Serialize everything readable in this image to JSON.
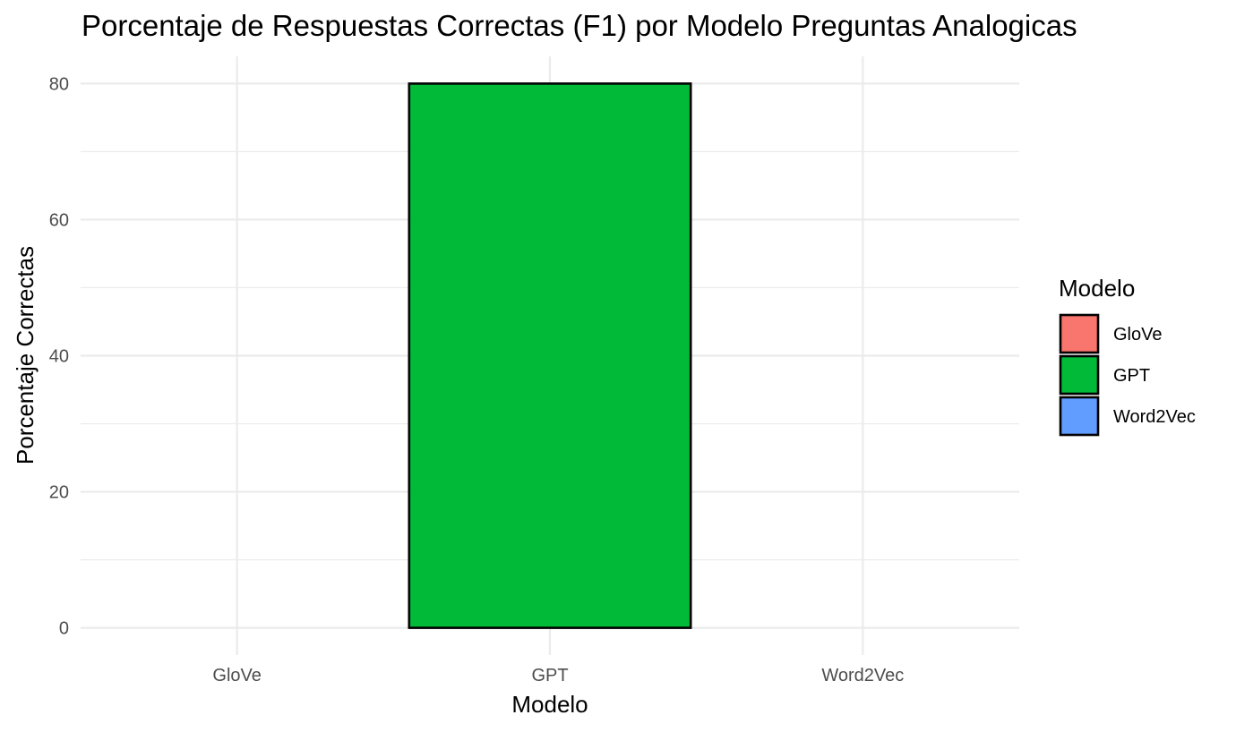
{
  "chart_data": {
    "type": "bar",
    "title": "Porcentaje de Respuestas Correctas (F1) por Modelo Preguntas Analogicas",
    "xlabel": "Modelo",
    "ylabel": "Porcentaje Correctas",
    "categories": [
      "GloVe",
      "GPT",
      "Word2Vec"
    ],
    "values": [
      0,
      80,
      0
    ],
    "colors": [
      "#F8766D",
      "#00BA38",
      "#619CFF"
    ],
    "bar_outline_color": "#000000",
    "ylim": [
      -4,
      84
    ],
    "yticks": [
      0,
      20,
      40,
      60,
      80
    ],
    "y_minor_ticks": [
      10,
      30,
      50,
      70
    ],
    "grid": true,
    "legend": {
      "title": "Modelo",
      "position": "right",
      "entries": [
        "GloVe",
        "GPT",
        "Word2Vec"
      ]
    }
  }
}
